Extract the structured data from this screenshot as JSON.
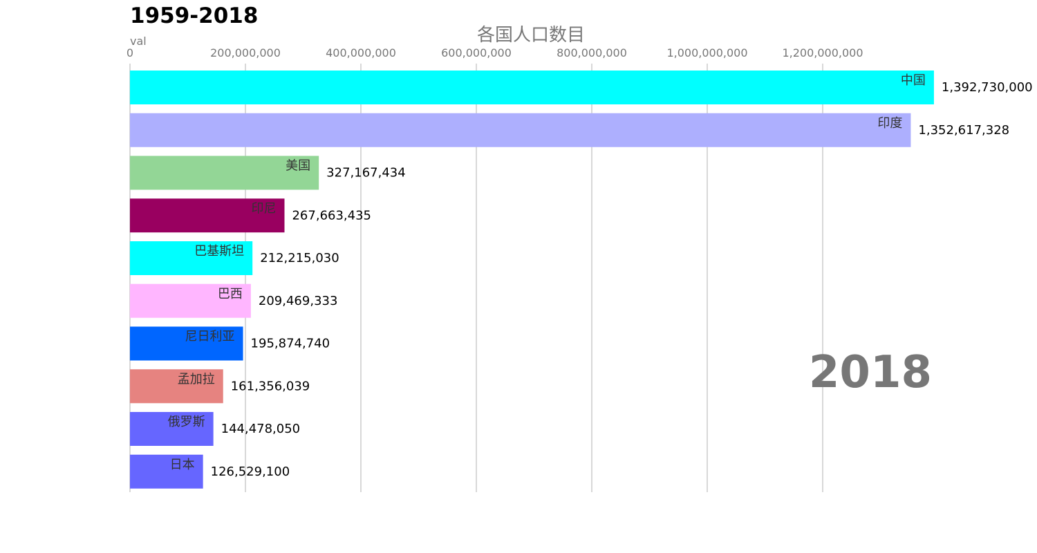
{
  "page": {
    "title": "1959-2018"
  },
  "chart_data": {
    "type": "bar",
    "orientation": "horizontal",
    "title": "各国人口数目",
    "xlabel": "val",
    "ylabel": "",
    "xlim": [
      0,
      1400000000
    ],
    "xticks": [
      0,
      200000000,
      400000000,
      600000000,
      800000000,
      1000000000,
      1200000000
    ],
    "xtick_labels": [
      "0",
      "200,000,000",
      "400,000,000",
      "600,000,000",
      "800,000,000",
      "1,000,000,000",
      "1,200,000,000"
    ],
    "grid": true,
    "year": "2018",
    "categories": [
      "中国",
      "印度",
      "美国",
      "印尼",
      "巴基斯坦",
      "巴西",
      "尼日利亚",
      "孟加拉",
      "俄罗斯",
      "日本"
    ],
    "values": [
      1392730000,
      1352617328,
      327167434,
      267663435,
      212215030,
      209469333,
      195874740,
      161356039,
      144478050,
      126529100
    ],
    "value_labels": [
      "1,392,730,000",
      "1,352,617,328",
      "327,167,434",
      "267,663,435",
      "212,215,030",
      "209,469,333",
      "195,874,740",
      "161,356,039",
      "144,478,050",
      "126,529,100"
    ],
    "colors": [
      "#00ffff",
      "#adaffe",
      "#93d696",
      "#990060",
      "#00ffff",
      "#ffb6ff",
      "#0066ff",
      "#e68380",
      "#6666ff",
      "#6666ff"
    ]
  }
}
